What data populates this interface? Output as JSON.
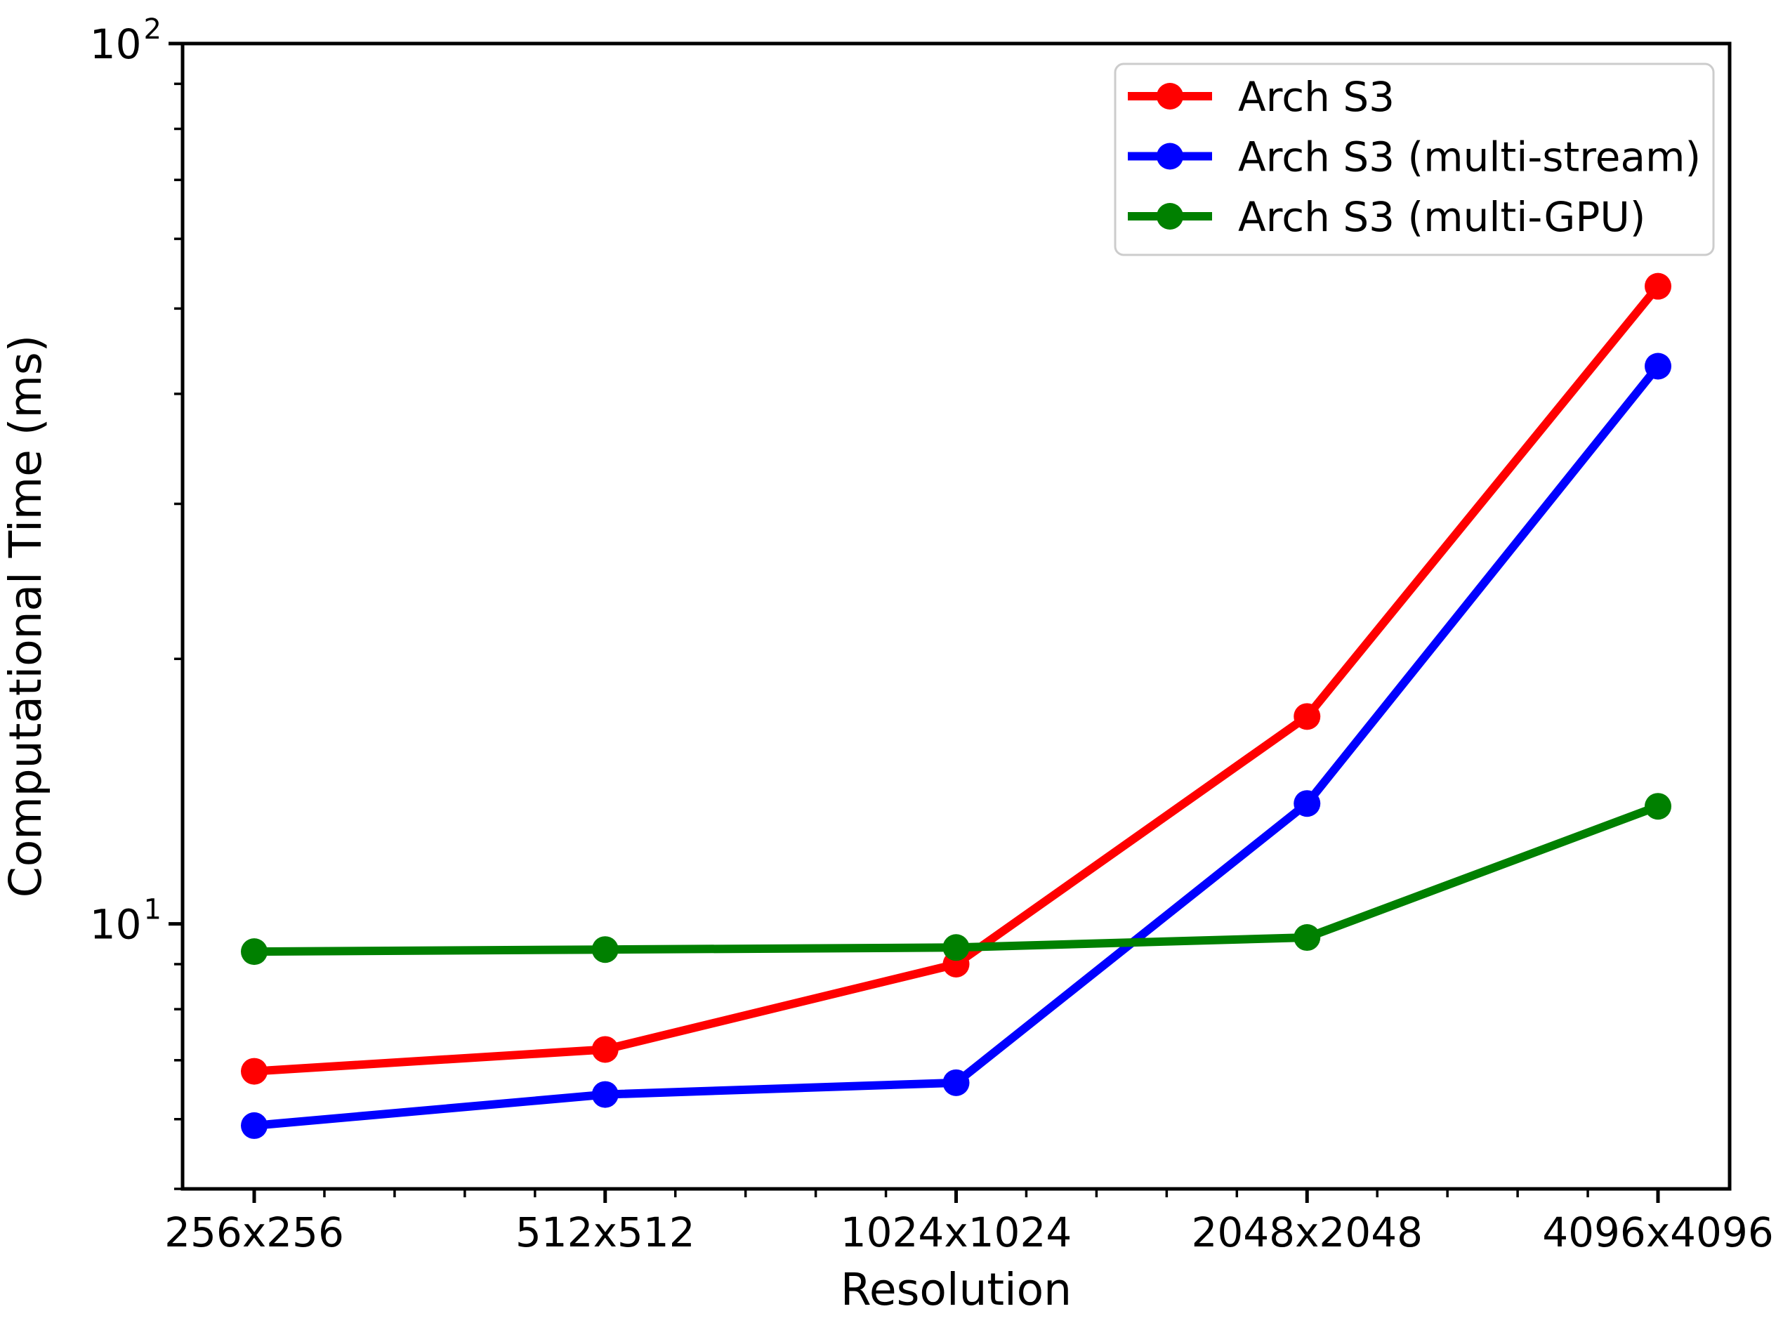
{
  "figure": {
    "background": "#ffffff"
  },
  "chart_data": {
    "type": "line",
    "title": "",
    "xlabel": "Resolution",
    "ylabel": "Computational Time (ms)",
    "yscale": "log",
    "ylim": [
      5,
      100
    ],
    "grid": false,
    "legend_position": "upper right",
    "categories": [
      "256x256",
      "512x512",
      "1024x1024",
      "2048x2048",
      "4096x4096"
    ],
    "series": [
      {
        "name": "Arch S3",
        "color": "#ff0000",
        "values": [
          6.8,
          7.2,
          9.0,
          17.2,
          53
        ]
      },
      {
        "name": "Arch S3 (multi-stream)",
        "color": "#0000ff",
        "values": [
          5.9,
          6.4,
          6.6,
          13.7,
          43
        ]
      },
      {
        "name": "Arch S3 (multi-GPU)",
        "color": "#008000",
        "values": [
          9.3,
          9.35,
          9.4,
          9.65,
          13.6
        ]
      }
    ],
    "y_major_ticks": [
      {
        "value": 10,
        "label": "10",
        "exp": "1"
      },
      {
        "value": 100,
        "label": "10",
        "exp": "2"
      }
    ],
    "y_minor_ticks": [
      5,
      6,
      7,
      8,
      9,
      20,
      30,
      40,
      50,
      60,
      70,
      80,
      90
    ],
    "axis_color": "#000000",
    "legend_border_color": "#cccccc"
  }
}
